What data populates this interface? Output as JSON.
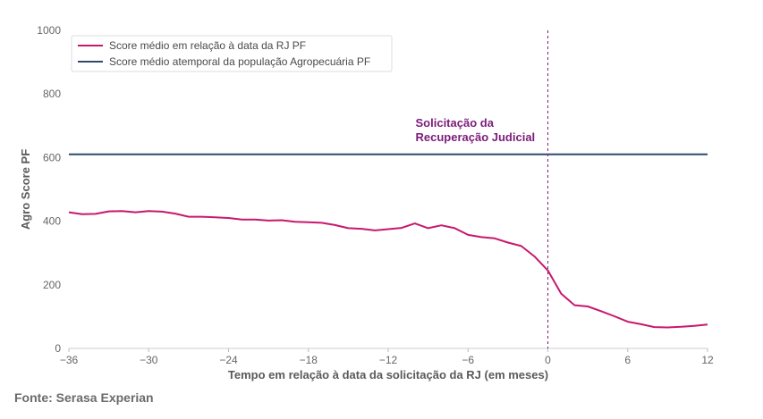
{
  "chart_data": {
    "type": "line",
    "xlabel": "Tempo em relação à data da solicitação da RJ (em meses)",
    "ylabel": "Agro Score PF",
    "xlim": [
      -36,
      12
    ],
    "ylim": [
      0,
      1000
    ],
    "xticks": [
      -36,
      -30,
      -24,
      -18,
      -12,
      -6,
      0,
      6,
      12
    ],
    "xtick_labels": [
      "−36",
      "−30",
      "−24",
      "−18",
      "−12",
      "−6",
      "0",
      "6",
      "12"
    ],
    "yticks": [
      0,
      200,
      400,
      600,
      800,
      1000
    ],
    "grid": false,
    "legend_position": "top-left",
    "series": [
      {
        "name": "Score médio em relação à data da RJ PF",
        "color": "#c8186e",
        "x": [
          -36,
          -35,
          -34,
          -33,
          -32,
          -31,
          -30,
          -29,
          -28,
          -27,
          -26,
          -25,
          -24,
          -23,
          -22,
          -21,
          -20,
          -19,
          -18,
          -17,
          -16,
          -15,
          -14,
          -13,
          -12,
          -11,
          -10,
          -9,
          -8,
          -7,
          -6,
          -5,
          -4,
          -3,
          -2,
          -1,
          0,
          1,
          2,
          3,
          4,
          5,
          6,
          7,
          8,
          9,
          10,
          11,
          12
        ],
        "values": [
          428,
          422,
          423,
          431,
          432,
          428,
          432,
          430,
          424,
          414,
          414,
          412,
          410,
          405,
          405,
          402,
          403,
          398,
          397,
          395,
          388,
          378,
          376,
          371,
          375,
          379,
          393,
          378,
          387,
          378,
          357,
          350,
          346,
          333,
          322,
          289,
          245,
          172,
          136,
          132,
          117,
          101,
          84,
          76,
          67,
          66,
          68,
          71,
          75
        ]
      },
      {
        "name": "Score médio atemporal da população Agropecuária PF",
        "color": "#2e4a6b",
        "x": [
          -36,
          12
        ],
        "values": [
          610,
          610
        ]
      }
    ],
    "annotations": [
      {
        "text_lines": [
          "Solicitação da",
          "Recuperação Judicial"
        ],
        "x": 0,
        "color": "#7b1c7a",
        "line_style": "dashed"
      }
    ],
    "source": "Fonte: Serasa Experian"
  }
}
